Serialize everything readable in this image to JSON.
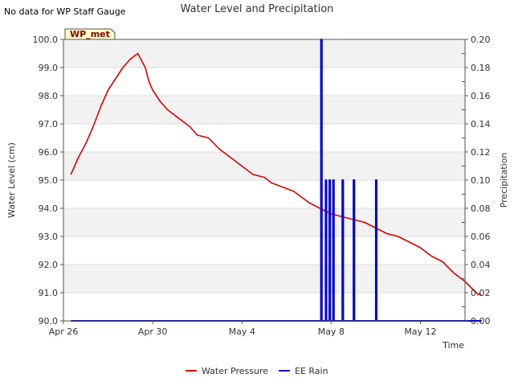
{
  "note": "No data for WP Staff Gauge",
  "badge": "WP_met",
  "colors": {
    "water": "#dd0000",
    "rain": "#0000dd",
    "band": "#f2f2f2",
    "badge_bg": "#ffffcc",
    "badge_text": "#8b0000"
  },
  "chart_data": {
    "type": "line",
    "title": "Water Level and Precipitation",
    "xlabel": "Time",
    "ylabel": "Water Level (cm)",
    "y2label": "Precipitation",
    "xlim": [
      "2024-04-26",
      "2024-05-14"
    ],
    "ylim": [
      90.0,
      100.0
    ],
    "y2lim": [
      0.0,
      0.2
    ],
    "x_ticks": [
      {
        "date": "2024-04-26",
        "label": "Apr 26"
      },
      {
        "date": "2024-04-30",
        "label": "Apr 30"
      },
      {
        "date": "2024-05-04",
        "label": "May 4"
      },
      {
        "date": "2024-05-08",
        "label": "May 8"
      },
      {
        "date": "2024-05-12",
        "label": "May 12"
      }
    ],
    "y_ticks": [
      "90.0",
      "91.0",
      "92.0",
      "93.0",
      "94.0",
      "95.0",
      "96.0",
      "97.0",
      "98.0",
      "99.0",
      "100.0"
    ],
    "y2_ticks": [
      "0.00",
      "0.02",
      "0.04",
      "0.06",
      "0.08",
      "0.10",
      "0.12",
      "0.14",
      "0.16",
      "0.18",
      "0.20"
    ],
    "grid": "horizontal bands",
    "legend": "bottom-center",
    "series": [
      {
        "name": "Water Pressure",
        "axis": "left",
        "points": [
          [
            "2024-04-26 08:00",
            95.2
          ],
          [
            "2024-04-26 16:00",
            95.8
          ],
          [
            "2024-04-27 00:00",
            96.3
          ],
          [
            "2024-04-27 08:00",
            96.9
          ],
          [
            "2024-04-27 16:00",
            97.6
          ],
          [
            "2024-04-28 00:00",
            98.2
          ],
          [
            "2024-04-28 08:00",
            98.6
          ],
          [
            "2024-04-28 16:00",
            99.0
          ],
          [
            "2024-04-29 00:00",
            99.3
          ],
          [
            "2024-04-29 08:00",
            99.5
          ],
          [
            "2024-04-29 16:00",
            99.0
          ],
          [
            "2024-04-29 20:00",
            98.5
          ],
          [
            "2024-04-30 00:00",
            98.2
          ],
          [
            "2024-04-30 08:00",
            97.8
          ],
          [
            "2024-04-30 16:00",
            97.5
          ],
          [
            "2024-05-01 00:00",
            97.3
          ],
          [
            "2024-05-01 08:00",
            97.1
          ],
          [
            "2024-05-01 16:00",
            96.9
          ],
          [
            "2024-05-02 00:00",
            96.6
          ],
          [
            "2024-05-02 12:00",
            96.5
          ],
          [
            "2024-05-03 00:00",
            96.1
          ],
          [
            "2024-05-03 12:00",
            95.8
          ],
          [
            "2024-05-04 00:00",
            95.5
          ],
          [
            "2024-05-04 12:00",
            95.2
          ],
          [
            "2024-05-05 00:00",
            95.1
          ],
          [
            "2024-05-05 08:00",
            94.9
          ],
          [
            "2024-05-05 16:00",
            94.8
          ],
          [
            "2024-05-06 00:00",
            94.7
          ],
          [
            "2024-05-06 08:00",
            94.6
          ],
          [
            "2024-05-06 16:00",
            94.4
          ],
          [
            "2024-05-07 00:00",
            94.2
          ],
          [
            "2024-05-07 12:00",
            94.0
          ],
          [
            "2024-05-08 00:00",
            93.8
          ],
          [
            "2024-05-08 12:00",
            93.7
          ],
          [
            "2024-05-09 00:00",
            93.6
          ],
          [
            "2024-05-09 12:00",
            93.5
          ],
          [
            "2024-05-10 00:00",
            93.3
          ],
          [
            "2024-05-10 12:00",
            93.1
          ],
          [
            "2024-05-11 00:00",
            93.0
          ],
          [
            "2024-05-11 12:00",
            92.8
          ],
          [
            "2024-05-12 00:00",
            92.6
          ],
          [
            "2024-05-12 12:00",
            92.3
          ],
          [
            "2024-05-13 00:00",
            92.1
          ],
          [
            "2024-05-13 12:00",
            91.7
          ],
          [
            "2024-05-14 00:00",
            91.4
          ],
          [
            "2024-05-14 12:00",
            91.0
          ],
          [
            "2024-05-14 18:00",
            90.9
          ]
        ]
      },
      {
        "name": "EE Rain",
        "axis": "right",
        "points": [
          [
            "2024-04-26 08:00",
            0.0
          ],
          [
            "2024-05-07 12:00",
            0.0
          ],
          [
            "2024-05-07 13:00",
            0.2
          ],
          [
            "2024-05-07 14:00",
            0.0
          ],
          [
            "2024-05-07 18:00",
            0.1
          ],
          [
            "2024-05-07 19:00",
            0.0
          ],
          [
            "2024-05-07 22:00",
            0.1
          ],
          [
            "2024-05-07 23:00",
            0.0
          ],
          [
            "2024-05-08 02:00",
            0.1
          ],
          [
            "2024-05-08 03:00",
            0.0
          ],
          [
            "2024-05-08 12:00",
            0.1
          ],
          [
            "2024-05-08 13:00",
            0.0
          ],
          [
            "2024-05-09 00:00",
            0.1
          ],
          [
            "2024-05-09 01:00",
            0.0
          ],
          [
            "2024-05-10 00:00",
            0.1
          ],
          [
            "2024-05-10 01:00",
            0.0
          ],
          [
            "2024-05-14 18:00",
            0.0
          ]
        ]
      }
    ]
  }
}
